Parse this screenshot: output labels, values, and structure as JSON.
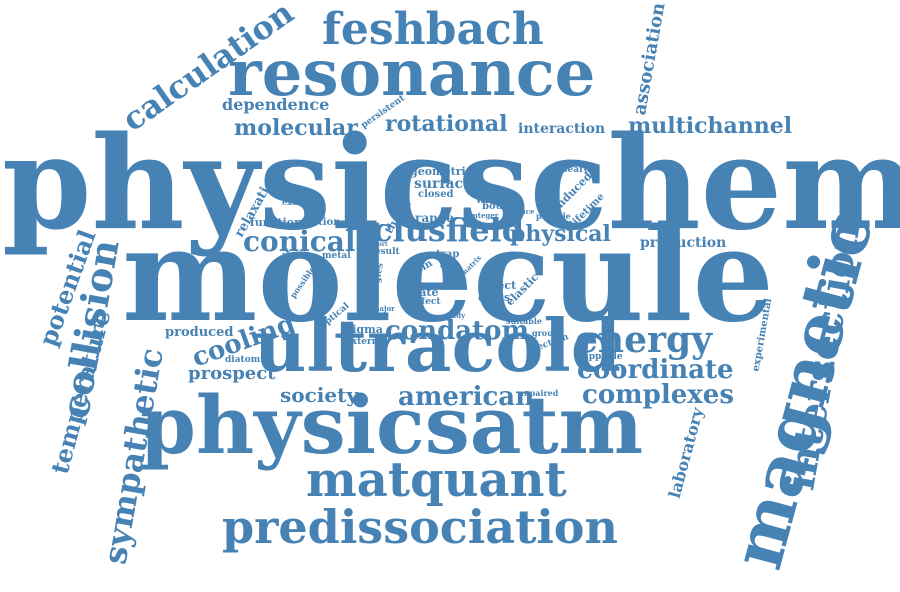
{
  "color": "#4682b4",
  "words": [
    {
      "text": "physicschem",
      "rot": 0
    },
    {
      "text": "molecule",
      "rot": 0
    },
    {
      "text": "ultracold",
      "rot": 0
    },
    {
      "text": "physicsatm",
      "rot": 0
    },
    {
      "text": "resonance",
      "rot": 0
    },
    {
      "text": "magnetic",
      "rot": -75
    },
    {
      "text": "feshbach",
      "rot": 0
    },
    {
      "text": "matquant",
      "rot": 0
    },
    {
      "text": "predissociation",
      "rot": 0
    },
    {
      "text": "intersection",
      "rot": -80
    },
    {
      "text": "collision",
      "rot": -80
    },
    {
      "text": "sympathetic",
      "rot": -80
    },
    {
      "text": "calculation",
      "rot": -35
    },
    {
      "text": "temperature",
      "rot": -75
    },
    {
      "text": "potential",
      "rot": -70
    },
    {
      "text": "association",
      "rot": -80
    },
    {
      "text": "multichannel",
      "rot": 0
    },
    {
      "text": "energy",
      "rot": 0
    },
    {
      "text": "condatom",
      "rot": 0
    },
    {
      "text": "clusfield",
      "rot": 0
    },
    {
      "text": "physical",
      "rot": 0
    },
    {
      "text": "conical",
      "rot": 0
    },
    {
      "text": "cooling",
      "rot": -20
    },
    {
      "text": "coordinate",
      "rot": 0
    },
    {
      "text": "complexes",
      "rot": 0
    },
    {
      "text": "american",
      "rot": 0
    },
    {
      "text": "society",
      "rot": 0
    },
    {
      "text": "prospect",
      "rot": 0
    },
    {
      "text": "rotational",
      "rot": 0
    },
    {
      "text": "molecular",
      "rot": 0
    },
    {
      "text": "dependence",
      "rot": 0
    },
    {
      "text": "interaction",
      "rot": 0
    },
    {
      "text": "production",
      "rot": 0
    },
    {
      "text": "laboratory",
      "rot": -75
    },
    {
      "text": "experimental",
      "rot": -80
    },
    {
      "text": "relaxation",
      "rot": -60
    },
    {
      "text": "produced",
      "rot": 0
    },
    {
      "text": "surface",
      "rot": 0
    },
    {
      "text": "geometric",
      "rot": 0
    },
    {
      "text": "research",
      "rot": 0
    },
    {
      "text": "persistent",
      "rot": -35
    },
    {
      "text": "closed",
      "rot": 0
    },
    {
      "text": "width",
      "rot": 0
    },
    {
      "text": "atomic",
      "rot": 0
    },
    {
      "text": "induced",
      "rot": -45
    },
    {
      "text": "lifetime",
      "rot": -45
    },
    {
      "text": "theory",
      "rot": -60
    },
    {
      "text": "range",
      "rot": 0
    },
    {
      "text": "function",
      "rot": 0
    },
    {
      "text": "section",
      "rot": 0
    },
    {
      "text": "excited",
      "rot": 0
    },
    {
      "text": "integer",
      "rot": 0
    },
    {
      "text": "induce",
      "rot": 0
    },
    {
      "text": "particle",
      "rot": 0
    },
    {
      "text": "inelastic",
      "rot": -70
    },
    {
      "text": "metal",
      "rot": 0
    },
    {
      "text": "result",
      "rot": 0
    },
    {
      "text": "short",
      "rot": 0
    },
    {
      "text": "trap",
      "rot": 0
    },
    {
      "text": "spin",
      "rot": -30
    },
    {
      "text": "possible",
      "rot": -55
    },
    {
      "text": "energies",
      "rot": -80
    },
    {
      "text": "state",
      "rot": 0
    },
    {
      "text": "effect",
      "rot": 0
    },
    {
      "text": "defect",
      "rot": 0
    },
    {
      "text": "cross",
      "rot": 0
    },
    {
      "text": "elastic",
      "rot": -45
    },
    {
      "text": "optical",
      "rot": -40
    },
    {
      "text": "sigma",
      "rot": 0
    },
    {
      "text": "external",
      "rot": 0
    },
    {
      "text": "diatomic",
      "rot": 0
    },
    {
      "text": "ground",
      "rot": 0
    },
    {
      "text": "electron",
      "rot": -20
    },
    {
      "text": "suitable",
      "rot": 0
    },
    {
      "text": "trappable",
      "rot": 0
    },
    {
      "text": "unpaired",
      "rot": 0
    },
    {
      "text": "study",
      "rot": 0
    },
    {
      "text": "major",
      "rot": 0
    },
    {
      "text": "bound",
      "rot": 0
    },
    {
      "text": "cold",
      "rot": 0
    },
    {
      "text": "matrix",
      "rot": -45
    }
  ]
}
